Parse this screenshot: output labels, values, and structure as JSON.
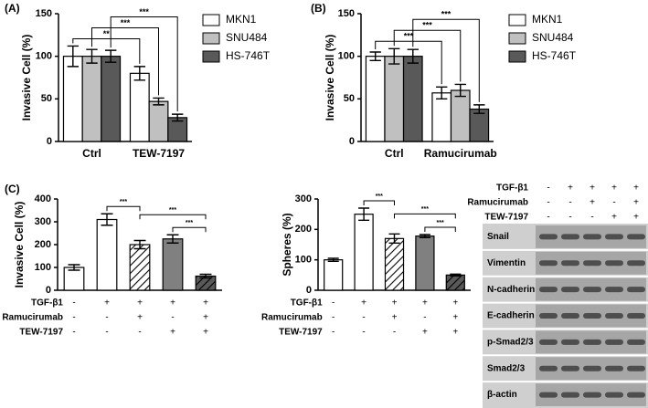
{
  "chart_data": [
    {
      "type": "bar",
      "panel": "(A)",
      "y_label": "Invasive Cell (%)",
      "categories": [
        "Ctrl",
        "TEW-7197"
      ],
      "series": [
        {
          "name": "MKN1",
          "color": "#ffffff",
          "values": [
            100,
            80
          ],
          "errors": [
            12,
            8
          ]
        },
        {
          "name": "SNU484",
          "color": "#c0c0c0",
          "values": [
            100,
            47
          ],
          "errors": [
            8,
            4
          ]
        },
        {
          "name": "HS-746T",
          "color": "#595959",
          "values": [
            100,
            28
          ],
          "errors": [
            7,
            4
          ]
        }
      ],
      "ylim": [
        0,
        150
      ],
      "yticks": [
        0,
        50,
        100,
        150
      ],
      "legend": "right",
      "brackets": [
        {
          "label": "**",
          "series": 0
        },
        {
          "label": "***",
          "series": 1
        },
        {
          "label": "***",
          "series": 2
        }
      ]
    },
    {
      "type": "bar",
      "panel": "(B)",
      "y_label": "Invasive Cell (%)",
      "categories": [
        "Ctrl",
        "Ramucirumab"
      ],
      "series": [
        {
          "name": "MKN1",
          "color": "#ffffff",
          "values": [
            100,
            57
          ],
          "errors": [
            5,
            7
          ]
        },
        {
          "name": "SNU484",
          "color": "#c0c0c0",
          "values": [
            100,
            60
          ],
          "errors": [
            9,
            7
          ]
        },
        {
          "name": "HS-746T",
          "color": "#595959",
          "values": [
            100,
            38
          ],
          "errors": [
            8,
            5
          ]
        }
      ],
      "ylim": [
        0,
        150
      ],
      "yticks": [
        0,
        50,
        100,
        150
      ],
      "legend": "right",
      "brackets": [
        {
          "label": "***",
          "series": 0
        },
        {
          "label": "***",
          "series": 1
        },
        {
          "label": "***",
          "series": 2
        }
      ]
    },
    {
      "type": "bar",
      "panel": "(C)",
      "y_label": "Invasive Cell (%)",
      "values": [
        100,
        310,
        200,
        225,
        62
      ],
      "errors": [
        12,
        25,
        18,
        18,
        8
      ],
      "colors": [
        "#ffffff",
        "#ffffff",
        "#ffffff",
        "#808080",
        "#595959"
      ],
      "hatch": [
        false,
        false,
        true,
        false,
        true
      ],
      "ylim": [
        0,
        400
      ],
      "yticks": [
        0,
        100,
        200,
        300,
        400
      ],
      "treatments": [
        {
          "name": "TGF-β1",
          "signs": [
            "-",
            "+",
            "+",
            "+",
            "+"
          ]
        },
        {
          "name": "Ramucirumab",
          "signs": [
            "-",
            "-",
            "+",
            "-",
            "+"
          ]
        },
        {
          "name": "TEW-7197",
          "signs": [
            "-",
            "-",
            "-",
            "+",
            "+"
          ]
        }
      ],
      "brackets": [
        {
          "label": "***",
          "bars": [
            1,
            2
          ]
        },
        {
          "label": "***",
          "bars": [
            2,
            4
          ]
        },
        {
          "label": "***",
          "bars": [
            3,
            4
          ]
        }
      ]
    },
    {
      "type": "bar",
      "y_label": "Spheres (%)",
      "values": [
        100,
        250,
        170,
        178,
        50
      ],
      "errors": [
        5,
        20,
        15,
        5,
        3
      ],
      "colors": [
        "#ffffff",
        "#ffffff",
        "#ffffff",
        "#808080",
        "#595959"
      ],
      "hatch": [
        false,
        false,
        true,
        false,
        true
      ],
      "ylim": [
        0,
        300
      ],
      "yticks": [
        0,
        100,
        200,
        300
      ],
      "treatments": [
        {
          "name": "TGF-β1",
          "signs": [
            "-",
            "+",
            "+",
            "+",
            "+"
          ]
        },
        {
          "name": "Ramucirumab",
          "signs": [
            "-",
            "-",
            "+",
            "-",
            "+"
          ]
        },
        {
          "name": "TEW-7197",
          "signs": [
            "-",
            "-",
            "-",
            "+",
            "+"
          ]
        }
      ],
      "brackets": [
        {
          "label": "***",
          "bars": [
            1,
            2
          ]
        },
        {
          "label": "***",
          "bars": [
            2,
            4
          ]
        },
        {
          "label": "***",
          "bars": [
            3,
            4
          ]
        }
      ]
    }
  ],
  "blot": {
    "treatments": [
      {
        "name": "TGF-β1",
        "signs": [
          "-",
          "+",
          "+",
          "+",
          "+"
        ]
      },
      {
        "name": "Ramucirumab",
        "signs": [
          "-",
          "-",
          "+",
          "-",
          "+"
        ]
      },
      {
        "name": "TEW-7197",
        "signs": [
          "-",
          "-",
          "-",
          "+",
          "+"
        ]
      }
    ],
    "proteins": [
      "Snail",
      "Vimentin",
      "N-cadherin",
      "E-cadherin",
      "p-Smad2/3",
      "Smad2/3",
      "β-actin"
    ]
  }
}
